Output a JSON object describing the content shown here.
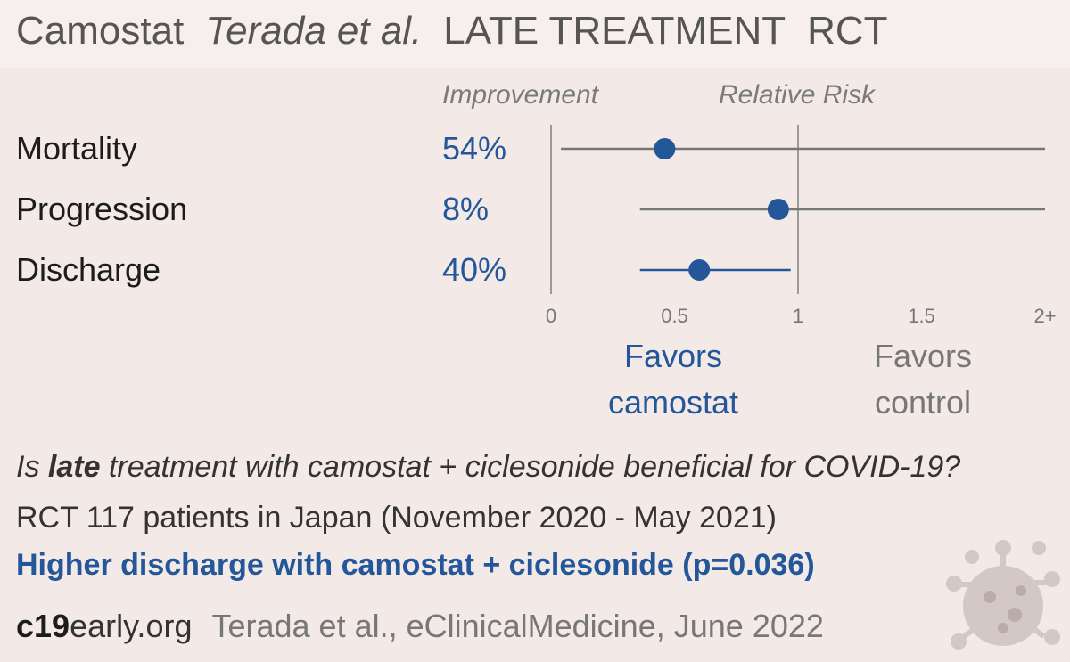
{
  "header": {
    "drug": "Camostat",
    "authors": "Terada et al.",
    "stage": "LATE TREATMENT",
    "design": "RCT"
  },
  "columns": {
    "improvement": "Improvement",
    "relative_risk": "Relative Risk"
  },
  "chart_data": {
    "type": "forest",
    "xlim": [
      0,
      2
    ],
    "ticks": [
      {
        "value": 0,
        "label": "0"
      },
      {
        "value": 0.5,
        "label": "0.5"
      },
      {
        "value": 1,
        "label": "1"
      },
      {
        "value": 1.5,
        "label": "1.5"
      },
      {
        "value": 2,
        "label": "2+"
      }
    ],
    "rows": [
      {
        "outcome": "Mortality",
        "improvement": "54%",
        "rr": 0.46,
        "lo": 0.04,
        "hi": 2.0,
        "color": "#777777"
      },
      {
        "outcome": "Progression",
        "improvement": "8%",
        "rr": 0.92,
        "lo": 0.36,
        "hi": 2.0,
        "color": "#777777"
      },
      {
        "outcome": "Discharge",
        "improvement": "40%",
        "rr": 0.6,
        "lo": 0.36,
        "hi": 0.97,
        "color": "#24579a"
      }
    ],
    "point_color": "#24579a",
    "favors_treatment": [
      "Favors",
      "camostat"
    ],
    "favors_control": [
      "Favors",
      "control"
    ]
  },
  "summary": {
    "question_pre": "Is ",
    "question_bold": "late",
    "question_post": " treatment with camostat + ciclesonide beneficial for COVID-19?",
    "description": "RCT 117 patients in Japan (November 2020 - May 2021)",
    "result": "Higher discharge with camostat + ciclesonide (p=0.036)"
  },
  "footer": {
    "site_bold": "c19",
    "site_rest": "early.org",
    "citation": "Terada et al., eClinicalMedicine, June 2022"
  }
}
